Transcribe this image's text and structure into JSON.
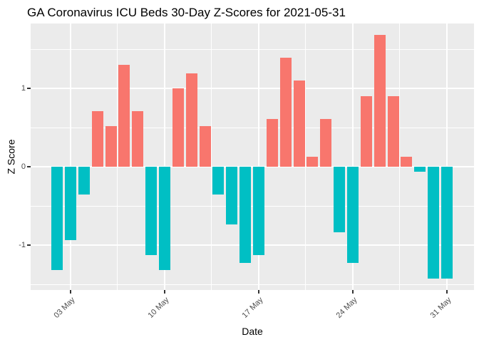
{
  "title": "GA Coronavirus ICU Beds 30-Day Z-Scores for 2021-05-31",
  "chart_data": {
    "type": "bar",
    "title": "GA Coronavirus ICU Beds 30-Day Z-Scores for 2021-05-31",
    "xlabel": "Date",
    "ylabel": "Z Score",
    "x": [
      "2021-05-02",
      "2021-05-03",
      "2021-05-04",
      "2021-05-05",
      "2021-05-06",
      "2021-05-07",
      "2021-05-08",
      "2021-05-09",
      "2021-05-10",
      "2021-05-11",
      "2021-05-12",
      "2021-05-13",
      "2021-05-14",
      "2021-05-15",
      "2021-05-16",
      "2021-05-17",
      "2021-05-18",
      "2021-05-19",
      "2021-05-20",
      "2021-05-21",
      "2021-05-22",
      "2021-05-23",
      "2021-05-24",
      "2021-05-25",
      "2021-05-26",
      "2021-05-27",
      "2021-05-28",
      "2021-05-29",
      "2021-05-30",
      "2021-05-31"
    ],
    "values": [
      -1.32,
      -0.94,
      -0.35,
      0.71,
      0.52,
      1.3,
      0.71,
      -1.13,
      -1.32,
      1.0,
      1.19,
      0.52,
      -0.35,
      -0.74,
      -1.23,
      -1.13,
      0.61,
      1.39,
      1.1,
      0.13,
      0.61,
      -0.84,
      -1.23,
      0.9,
      1.68,
      0.9,
      0.13,
      -0.06,
      -1.43,
      -1.43
    ],
    "ylim": [
      -1.57,
      1.84
    ],
    "y_major_ticks": [
      1,
      0,
      -1
    ],
    "y_major_tick_labels": [
      "1",
      "0",
      "-1"
    ],
    "y_minor_ticks": [
      1.5,
      0.5,
      -0.5,
      -1.5
    ],
    "x_ticks": [
      {
        "label": "03 May",
        "day_index": 1
      },
      {
        "label": "10 May",
        "day_index": 8
      },
      {
        "label": "17 May",
        "day_index": 15
      },
      {
        "label": "24 May",
        "day_index": 22
      },
      {
        "label": "31 May",
        "day_index": 29
      }
    ],
    "x_minor_day_indices": [
      4.5,
      11.5,
      18.5,
      25.5
    ],
    "grid": "on",
    "legend": "none",
    "colors": {
      "positive_bar": "#F8766D",
      "negative_bar": "#00BFC4",
      "panel_background": "#EBEBEB",
      "gridline": "#FFFFFF",
      "tick_label": "#4D4D4D",
      "tick_mark": "#333333",
      "text": "#000000",
      "page_background": "#FFFFFF"
    }
  }
}
